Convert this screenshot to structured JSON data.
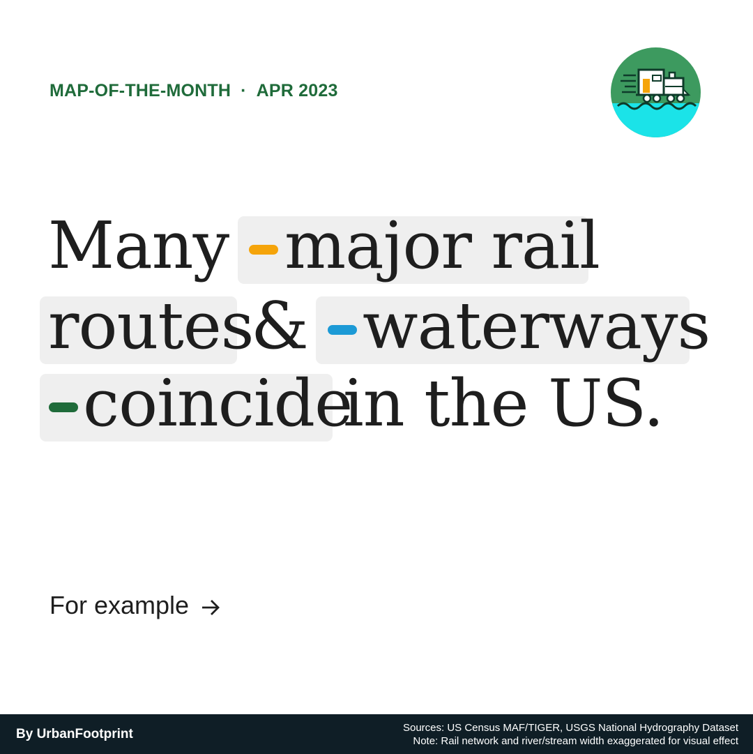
{
  "header": {
    "series": "MAP-OF-THE-MONTH",
    "separator": "·",
    "date": "APR 2023"
  },
  "badge": {
    "icon": "train-on-water-icon"
  },
  "headline": {
    "w1": "Many",
    "w2": "major rail",
    "w3": "routes",
    "w4": "&",
    "w5": "waterways",
    "w6": "coincide",
    "w7": "in the US."
  },
  "legend_colors": {
    "rail": "#f5a40a",
    "waterways": "#1c9ad6",
    "coincide": "#1f6b3a"
  },
  "cta": {
    "label": "For example",
    "icon": "arrow-right-icon"
  },
  "footer": {
    "byline": "By UrbanFootprint",
    "sources": "Sources: US Census MAF/TIGER, USGS National Hydrography Dataset",
    "note": "Note: Rail network and river/stream width exaggerated for visual effect"
  }
}
